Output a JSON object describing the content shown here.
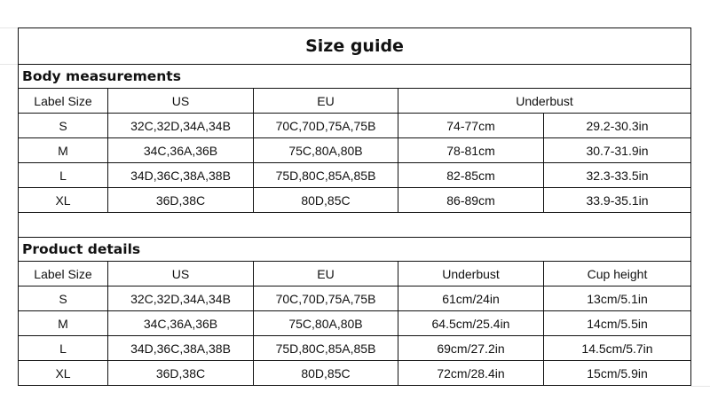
{
  "title": "Size guide",
  "body": {
    "heading": "Body measurements",
    "headers": [
      "Label Size",
      "US",
      "EU",
      "Underbust"
    ],
    "rows": [
      [
        "S",
        "32C,32D,34A,34B",
        "70C,70D,75A,75B",
        "74-77cm",
        "29.2-30.3in"
      ],
      [
        "M",
        "34C,36A,36B",
        "75C,80A,80B",
        "78-81cm",
        "30.7-31.9in"
      ],
      [
        "L",
        "34D,36C,38A,38B",
        "75D,80C,85A,85B",
        "82-85cm",
        "32.3-33.5in"
      ],
      [
        "XL",
        "36D,38C",
        "80D,85C",
        "86-89cm",
        "33.9-35.1in"
      ]
    ]
  },
  "product": {
    "heading": "Product details",
    "headers": [
      "Label Size",
      "US",
      "EU",
      "Underbust",
      "Cup height"
    ],
    "rows": [
      [
        "S",
        "32C,32D,34A,34B",
        "70C,70D,75A,75B",
        "61cm/24in",
        "13cm/5.1in"
      ],
      [
        "M",
        "34C,36A,36B",
        "75C,80A,80B",
        "64.5cm/25.4in",
        "14cm/5.5in"
      ],
      [
        "L",
        "34D,36C,38A,38B",
        "75D,80C,85A,85B",
        "69cm/27.2in",
        "14.5cm/5.7in"
      ],
      [
        "XL",
        "36D,38C",
        "80D,85C",
        "72cm/28.4in",
        "15cm/5.9in"
      ]
    ]
  }
}
